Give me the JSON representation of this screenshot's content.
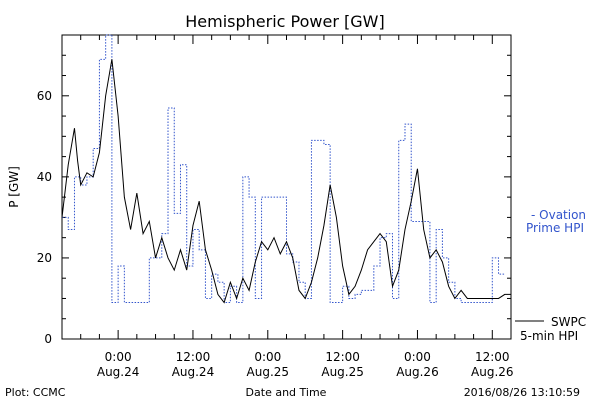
{
  "plot_info": {
    "left": "Plot: CCMC",
    "center": "Date and Time",
    "right": "2016/08/26 13:10:59"
  },
  "chart_data": {
    "type": "line",
    "title": "Hemispheric Power [GW]",
    "xlabel": "Date and Time",
    "ylabel": "P [GW]",
    "ylim": [
      0,
      75
    ],
    "xlim": [
      "2016-08-23T15:00",
      "2016-08-26T15:00"
    ],
    "y_ticks": [
      0,
      20,
      40,
      60
    ],
    "x_ticks": [
      {
        "t": "2016-08-24T00:00",
        "time": "0:00",
        "date": "Aug.24"
      },
      {
        "t": "2016-08-24T12:00",
        "time": "12:00",
        "date": "Aug.24"
      },
      {
        "t": "2016-08-25T00:00",
        "time": "0:00",
        "date": "Aug.25"
      },
      {
        "t": "2016-08-25T12:00",
        "time": "12:00",
        "date": "Aug.25"
      },
      {
        "t": "2016-08-26T00:00",
        "time": "0:00",
        "date": "Aug.26"
      },
      {
        "t": "2016-08-26T12:00",
        "time": "12:00",
        "date": "Aug.26"
      }
    ],
    "grid": false,
    "legend_placement": "right",
    "series": [
      {
        "name": "Ovation Prime HPI",
        "legend_lines": [
          "- Ovation",
          "Prime HPI"
        ],
        "color": "#3355cc",
        "style": "dotted-step",
        "points": [
          [
            "2016-08-23T15:00",
            30
          ],
          [
            "2016-08-23T16:00",
            27
          ],
          [
            "2016-08-23T17:00",
            40
          ],
          [
            "2016-08-23T18:00",
            38
          ],
          [
            "2016-08-23T19:00",
            40
          ],
          [
            "2016-08-23T20:00",
            47
          ],
          [
            "2016-08-23T21:00",
            69
          ],
          [
            "2016-08-23T22:00",
            75
          ],
          [
            "2016-08-23T23:00",
            9
          ],
          [
            "2016-08-24T00:00",
            18
          ],
          [
            "2016-08-24T01:00",
            9
          ],
          [
            "2016-08-24T05:00",
            20
          ],
          [
            "2016-08-24T07:00",
            26
          ],
          [
            "2016-08-24T08:00",
            57
          ],
          [
            "2016-08-24T09:00",
            31
          ],
          [
            "2016-08-24T10:00",
            43
          ],
          [
            "2016-08-24T11:00",
            18
          ],
          [
            "2016-08-24T12:00",
            27
          ],
          [
            "2016-08-24T13:00",
            22
          ],
          [
            "2016-08-24T14:00",
            10
          ],
          [
            "2016-08-24T15:00",
            16
          ],
          [
            "2016-08-24T16:00",
            14
          ],
          [
            "2016-08-24T17:00",
            9
          ],
          [
            "2016-08-24T18:00",
            13
          ],
          [
            "2016-08-24T19:00",
            9
          ],
          [
            "2016-08-24T20:00",
            40
          ],
          [
            "2016-08-24T21:00",
            35
          ],
          [
            "2016-08-24T22:00",
            10
          ],
          [
            "2016-08-24T23:00",
            35
          ],
          [
            "2016-08-25T03:00",
            21
          ],
          [
            "2016-08-25T04:00",
            19
          ],
          [
            "2016-08-25T05:00",
            14
          ],
          [
            "2016-08-25T06:00",
            10
          ],
          [
            "2016-08-25T07:00",
            49
          ],
          [
            "2016-08-25T09:00",
            48
          ],
          [
            "2016-08-25T10:00",
            9
          ],
          [
            "2016-08-25T12:00",
            13
          ],
          [
            "2016-08-25T13:00",
            10
          ],
          [
            "2016-08-25T14:00",
            11
          ],
          [
            "2016-08-25T15:00",
            12
          ],
          [
            "2016-08-25T17:00",
            18
          ],
          [
            "2016-08-25T18:00",
            25
          ],
          [
            "2016-08-25T19:00",
            26
          ],
          [
            "2016-08-25T20:00",
            10
          ],
          [
            "2016-08-25T21:00",
            49
          ],
          [
            "2016-08-25T22:00",
            53
          ],
          [
            "2016-08-25T23:00",
            29
          ],
          [
            "2016-08-26T02:00",
            9
          ],
          [
            "2016-08-26T03:00",
            27
          ],
          [
            "2016-08-26T04:00",
            20
          ],
          [
            "2016-08-26T05:00",
            14
          ],
          [
            "2016-08-26T06:00",
            10
          ],
          [
            "2016-08-26T07:00",
            9
          ],
          [
            "2016-08-26T11:00",
            9
          ],
          [
            "2016-08-26T12:00",
            20
          ],
          [
            "2016-08-26T13:00",
            16
          ],
          [
            "2016-08-26T14:00",
            16
          ]
        ]
      },
      {
        "name": "SWPC 5-min HPI",
        "legend_lines": [
          "SWPC",
          "5-min HPI"
        ],
        "color": "#000000",
        "style": "solid",
        "points": [
          [
            "2016-08-23T15:00",
            30
          ],
          [
            "2016-08-23T16:00",
            43
          ],
          [
            "2016-08-23T17:00",
            52
          ],
          [
            "2016-08-23T17:30",
            44
          ],
          [
            "2016-08-23T18:00",
            38
          ],
          [
            "2016-08-23T19:00",
            41
          ],
          [
            "2016-08-23T20:00",
            40
          ],
          [
            "2016-08-23T21:00",
            46
          ],
          [
            "2016-08-23T22:00",
            60
          ],
          [
            "2016-08-23T23:00",
            69
          ],
          [
            "2016-08-24T00:00",
            55
          ],
          [
            "2016-08-24T01:00",
            35
          ],
          [
            "2016-08-24T02:00",
            27
          ],
          [
            "2016-08-24T03:00",
            36
          ],
          [
            "2016-08-24T04:00",
            26
          ],
          [
            "2016-08-24T05:00",
            29
          ],
          [
            "2016-08-24T06:00",
            20
          ],
          [
            "2016-08-24T07:00",
            25
          ],
          [
            "2016-08-24T08:00",
            20
          ],
          [
            "2016-08-24T09:00",
            17
          ],
          [
            "2016-08-24T10:00",
            22
          ],
          [
            "2016-08-24T11:00",
            17
          ],
          [
            "2016-08-24T12:00",
            28
          ],
          [
            "2016-08-24T13:00",
            34
          ],
          [
            "2016-08-24T14:00",
            22
          ],
          [
            "2016-08-24T15:00",
            17
          ],
          [
            "2016-08-24T16:00",
            11
          ],
          [
            "2016-08-24T17:00",
            9
          ],
          [
            "2016-08-24T18:00",
            14
          ],
          [
            "2016-08-24T19:00",
            10
          ],
          [
            "2016-08-24T20:00",
            15
          ],
          [
            "2016-08-24T21:00",
            12
          ],
          [
            "2016-08-24T22:00",
            19
          ],
          [
            "2016-08-24T23:00",
            24
          ],
          [
            "2016-08-25T00:00",
            22
          ],
          [
            "2016-08-25T01:00",
            25
          ],
          [
            "2016-08-25T02:00",
            21
          ],
          [
            "2016-08-25T03:00",
            24
          ],
          [
            "2016-08-25T04:00",
            20
          ],
          [
            "2016-08-25T05:00",
            12
          ],
          [
            "2016-08-25T06:00",
            10
          ],
          [
            "2016-08-25T07:00",
            14
          ],
          [
            "2016-08-25T08:00",
            20
          ],
          [
            "2016-08-25T09:00",
            28
          ],
          [
            "2016-08-25T10:00",
            38
          ],
          [
            "2016-08-25T11:00",
            30
          ],
          [
            "2016-08-25T12:00",
            18
          ],
          [
            "2016-08-25T13:00",
            11
          ],
          [
            "2016-08-25T14:00",
            13
          ],
          [
            "2016-08-25T15:00",
            17
          ],
          [
            "2016-08-25T16:00",
            22
          ],
          [
            "2016-08-25T17:00",
            24
          ],
          [
            "2016-08-25T18:00",
            26
          ],
          [
            "2016-08-25T19:00",
            24
          ],
          [
            "2016-08-25T20:00",
            13
          ],
          [
            "2016-08-25T21:00",
            17
          ],
          [
            "2016-08-25T22:00",
            27
          ],
          [
            "2016-08-25T23:00",
            34
          ],
          [
            "2016-08-26T00:00",
            42
          ],
          [
            "2016-08-26T01:00",
            27
          ],
          [
            "2016-08-26T02:00",
            20
          ],
          [
            "2016-08-26T03:00",
            22
          ],
          [
            "2016-08-26T04:00",
            19
          ],
          [
            "2016-08-26T05:00",
            13
          ],
          [
            "2016-08-26T06:00",
            10
          ],
          [
            "2016-08-26T07:00",
            12
          ],
          [
            "2016-08-26T08:00",
            10
          ],
          [
            "2016-08-26T10:00",
            10
          ],
          [
            "2016-08-26T12:00",
            10
          ],
          [
            "2016-08-26T13:00",
            10
          ],
          [
            "2016-08-26T14:00",
            11
          ],
          [
            "2016-08-26T15:00",
            11
          ]
        ]
      }
    ]
  }
}
